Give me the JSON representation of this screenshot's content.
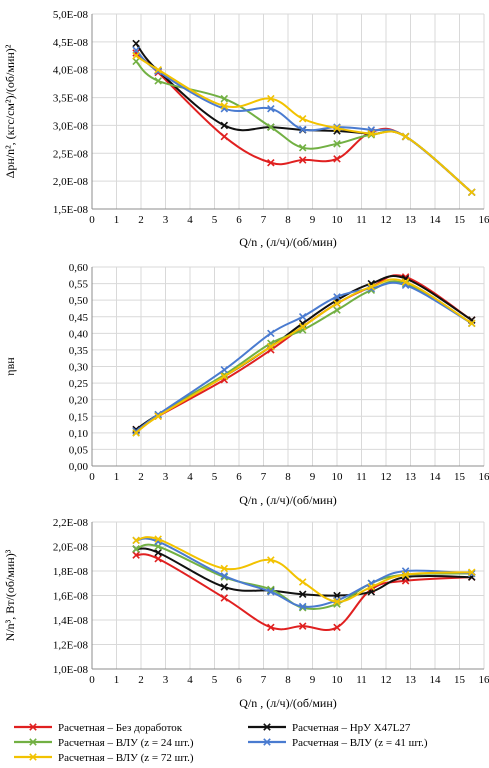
{
  "colors": {
    "series_0": "#e02020",
    "series_1": "#111111",
    "series_2": "#72b043",
    "series_3": "#4a7bd0",
    "series_4": "#f2c200",
    "grid": "#d9d9d9",
    "axis": "#8c8c8c"
  },
  "legend": {
    "items": [
      {
        "prefix": "Расчетная",
        "dash": "–",
        "name": "Без доработок"
      },
      {
        "prefix": "Расчетная",
        "dash": "–",
        "name": "НрУ Х47L27"
      },
      {
        "prefix": "Расчетная",
        "dash": "–",
        "name": "ВЛУ (z = 24 шт.)"
      },
      {
        "prefix": "Расчетная",
        "dash": "–",
        "name": "ВЛУ (z = 41 шт.)"
      },
      {
        "prefix": "Расчетная",
        "dash": "–",
        "name": "ВЛУ (z = 72 шт.)"
      }
    ]
  },
  "chart_data": [
    {
      "type": "line",
      "xlabel": "Q/n , (л/ч)/(об/мин)",
      "ylabel": "Δpн/n², (кгс/см²)/(об/мин)²",
      "xlim": [
        0,
        16
      ],
      "ylim": [
        1.5e-08,
        5e-08
      ],
      "xticks": [
        "0",
        "1",
        "2",
        "3",
        "4",
        "5",
        "6",
        "7",
        "8",
        "9",
        "10",
        "11",
        "12",
        "13",
        "14",
        "15",
        "16"
      ],
      "yticks": [
        "1,5E-08",
        "2,0E-08",
        "2,5E-08",
        "3,0E-08",
        "3,5E-08",
        "4,0E-08",
        "4,5E-08",
        "5,0E-08"
      ],
      "grid": true,
      "series": [
        {
          "name": "Расчетная – Без доработок",
          "x": [
            1.8,
            2.7,
            5.4,
            7.3,
            8.6,
            10.0,
            11.4,
            12.8,
            15.5
          ],
          "y": [
            4.3e-08,
            3.95e-08,
            2.8e-08,
            2.33e-08,
            2.38e-08,
            2.4e-08,
            2.88e-08,
            2.8e-08,
            1.8e-08
          ]
        },
        {
          "name": "Расчетная – НрУ Х47L27",
          "x": [
            1.8,
            2.7,
            5.4,
            7.3,
            8.6,
            10.0,
            11.4,
            12.8,
            15.5
          ],
          "y": [
            4.47e-08,
            3.98e-08,
            3e-08,
            2.97e-08,
            2.92e-08,
            2.9e-08,
            2.85e-08,
            2.8e-08,
            1.8e-08
          ]
        },
        {
          "name": "Расчетная – ВЛУ (z = 24 шт.)",
          "x": [
            1.8,
            2.7,
            5.4,
            7.3,
            8.6,
            10.0,
            11.4,
            12.8,
            15.5
          ],
          "y": [
            4.15e-08,
            3.8e-08,
            3.48e-08,
            2.97e-08,
            2.6e-08,
            2.67e-08,
            2.83e-08,
            2.8e-08,
            1.8e-08
          ]
        },
        {
          "name": "Расчетная – ВЛУ (z = 41 шт.)",
          "x": [
            1.8,
            2.7,
            5.4,
            7.3,
            8.6,
            10.0,
            11.4,
            12.8,
            15.5
          ],
          "y": [
            4.35e-08,
            3.97e-08,
            3.3e-08,
            3.3e-08,
            2.93e-08,
            2.97e-08,
            2.92e-08,
            2.8e-08,
            1.8e-08
          ]
        },
        {
          "name": "Расчетная – ВЛУ (z = 72 шт.)",
          "x": [
            1.8,
            2.7,
            5.4,
            7.3,
            8.6,
            10.0,
            11.4,
            12.8,
            15.5
          ],
          "y": [
            4.25e-08,
            4e-08,
            3.35e-08,
            3.48e-08,
            3.12e-08,
            2.95e-08,
            2.85e-08,
            2.8e-08,
            1.8e-08
          ]
        }
      ]
    },
    {
      "type": "line",
      "xlabel": "Q/n , (л/ч)/(об/мин)",
      "ylabel": "ηвн",
      "xlim": [
        0,
        16
      ],
      "ylim": [
        0,
        0.6
      ],
      "xticks": [
        "0",
        "1",
        "2",
        "3",
        "4",
        "5",
        "6",
        "7",
        "8",
        "9",
        "10",
        "11",
        "12",
        "13",
        "14",
        "15",
        "16"
      ],
      "yticks": [
        "0,00",
        "0,05",
        "0,10",
        "0,15",
        "0,20",
        "0,25",
        "0,30",
        "0,35",
        "0,40",
        "0,45",
        "0,50",
        "0,55",
        "0,60"
      ],
      "grid": true,
      "series": [
        {
          "name": "Расчетная – Без доработок",
          "x": [
            1.8,
            2.7,
            5.4,
            7.3,
            8.6,
            10.0,
            11.4,
            12.8,
            15.5
          ],
          "y": [
            0.11,
            0.15,
            0.26,
            0.35,
            0.42,
            0.49,
            0.54,
            0.57,
            0.44
          ]
        },
        {
          "name": "Расчетная – НрУ Х47L27",
          "x": [
            1.8,
            2.7,
            5.4,
            7.3,
            8.6,
            10.0,
            11.4,
            12.8,
            15.5
          ],
          "y": [
            0.11,
            0.155,
            0.27,
            0.36,
            0.43,
            0.5,
            0.55,
            0.565,
            0.44
          ]
        },
        {
          "name": "Расчетная – ВЛУ (z = 24 шт.)",
          "x": [
            1.8,
            2.7,
            5.4,
            7.3,
            8.6,
            10.0,
            11.4,
            12.8,
            15.5
          ],
          "y": [
            0.1,
            0.155,
            0.275,
            0.37,
            0.41,
            0.47,
            0.53,
            0.55,
            0.43
          ]
        },
        {
          "name": "Расчетная – ВЛУ (z = 41 шт.)",
          "x": [
            1.8,
            2.7,
            5.4,
            7.3,
            8.6,
            10.0,
            11.4,
            12.8,
            15.5
          ],
          "y": [
            0.105,
            0.155,
            0.29,
            0.4,
            0.45,
            0.51,
            0.535,
            0.545,
            0.43
          ]
        },
        {
          "name": "Расчетная – ВЛУ (z = 72 шт.)",
          "x": [
            1.8,
            2.7,
            5.4,
            7.3,
            8.6,
            10.0,
            11.4,
            12.8,
            15.5
          ],
          "y": [
            0.1,
            0.15,
            0.27,
            0.36,
            0.42,
            0.49,
            0.54,
            0.555,
            0.43
          ]
        }
      ]
    },
    {
      "type": "line",
      "xlabel": "Q/n , (л/ч)/(об/мин)",
      "ylabel": "N/n³, Вт/(об/мин)³",
      "xlim": [
        0,
        16
      ],
      "ylim": [
        1e-08,
        2.2e-08
      ],
      "xticks": [
        "0",
        "1",
        "2",
        "3",
        "4",
        "5",
        "6",
        "7",
        "8",
        "9",
        "10",
        "11",
        "12",
        "13",
        "14",
        "15",
        "16"
      ],
      "yticks": [
        "1,0E-08",
        "1,2E-08",
        "1,4E-08",
        "1,6E-08",
        "1,8E-08",
        "2,0E-08",
        "2,2E-08"
      ],
      "grid": true,
      "series": [
        {
          "name": "Расчетная – Без доработок",
          "x": [
            1.8,
            2.7,
            5.4,
            7.3,
            8.6,
            10.0,
            11.4,
            12.8,
            15.5
          ],
          "y": [
            1.93e-08,
            1.9e-08,
            1.58e-08,
            1.34e-08,
            1.35e-08,
            1.34e-08,
            1.65e-08,
            1.72e-08,
            1.75e-08
          ]
        },
        {
          "name": "Расчетная – НрУ Х47L27",
          "x": [
            1.8,
            2.7,
            5.4,
            7.3,
            8.6,
            10.0,
            11.4,
            12.8,
            15.5
          ],
          "y": [
            1.98e-08,
            1.95e-08,
            1.67e-08,
            1.64e-08,
            1.61e-08,
            1.6e-08,
            1.63e-08,
            1.75e-08,
            1.75e-08
          ]
        },
        {
          "name": "Расчетная – ВЛУ (z = 24 шт.)",
          "x": [
            1.8,
            2.7,
            5.4,
            7.3,
            8.6,
            10.0,
            11.4,
            12.8,
            15.5
          ],
          "y": [
            1.98e-08,
            2e-08,
            1.75e-08,
            1.65e-08,
            1.5e-08,
            1.53e-08,
            1.7e-08,
            1.77e-08,
            1.78e-08
          ]
        },
        {
          "name": "Расчетная – ВЛУ (z = 41 шт.)",
          "x": [
            1.8,
            2.7,
            5.4,
            7.3,
            8.6,
            10.0,
            11.4,
            12.8,
            15.5
          ],
          "y": [
            2.05e-08,
            2.04e-08,
            1.76e-08,
            1.63e-08,
            1.51e-08,
            1.56e-08,
            1.7e-08,
            1.8e-08,
            1.78e-08
          ]
        },
        {
          "name": "Расчетная – ВЛУ (z = 72 шт.)",
          "x": [
            1.8,
            2.7,
            5.4,
            7.3,
            8.6,
            10.0,
            11.4,
            12.8,
            15.5
          ],
          "y": [
            2.05e-08,
            2.06e-08,
            1.82e-08,
            1.89e-08,
            1.71e-08,
            1.55e-08,
            1.67e-08,
            1.77e-08,
            1.79e-08
          ]
        }
      ]
    }
  ]
}
